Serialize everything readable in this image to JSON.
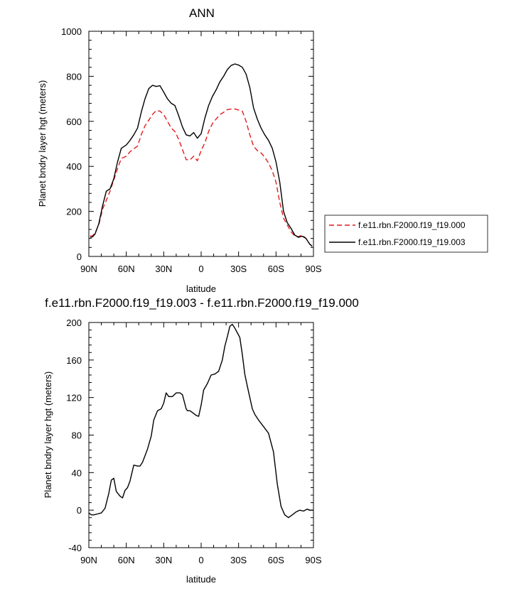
{
  "chart_data": [
    {
      "type": "line",
      "title": "ANN",
      "xlabel": "latitude",
      "ylabel": "Planet bndry layer hgt (meters)",
      "xlim": [
        90,
        -90
      ],
      "ylim": [
        0,
        1000
      ],
      "xticks": [
        90,
        60,
        30,
        0,
        -30,
        -60,
        -90
      ],
      "xtick_labels": [
        "90N",
        "60N",
        "30N",
        "0",
        "30S",
        "60S",
        "90S"
      ],
      "yticks": [
        0,
        200,
        400,
        600,
        800,
        1000
      ],
      "ytick_labels": [
        "0",
        "200",
        "400",
        "600",
        "800",
        "1000"
      ],
      "grid": false,
      "legend_position": "right",
      "series": [
        {
          "name": "f.e11.rbn.F2000.f19_f19.000",
          "color": "#e41a1c",
          "dash": "dashed",
          "x": [
            89,
            87,
            85,
            82,
            79,
            76,
            73,
            70,
            67,
            64,
            60,
            57,
            54,
            51,
            48,
            45,
            42,
            39,
            36,
            33,
            30,
            27,
            24,
            21,
            18,
            15,
            12,
            9,
            6,
            3,
            0,
            -3,
            -6,
            -9,
            -12,
            -15,
            -18,
            -21,
            -24,
            -27,
            -30,
            -33,
            -36,
            -39,
            -42,
            -45,
            -48,
            -51,
            -54,
            -57,
            -60,
            -63,
            -66,
            -69,
            -72,
            -75,
            -78,
            -81,
            -84,
            -87,
            -89
          ],
          "y": [
            90,
            92,
            105,
            140,
            210,
            250,
            290,
            340,
            390,
            435,
            445,
            465,
            478,
            490,
            540,
            580,
            605,
            630,
            648,
            645,
            630,
            600,
            570,
            555,
            520,
            475,
            430,
            428,
            445,
            425,
            470,
            505,
            555,
            590,
            610,
            630,
            640,
            652,
            655,
            655,
            650,
            645,
            600,
            540,
            490,
            470,
            460,
            440,
            415,
            380,
            330,
            240,
            170,
            140,
            110,
            90,
            88,
            95,
            80,
            55,
            45
          ]
        },
        {
          "name": "f.e11.rbn.F2000.f19_f19.003",
          "color": "#000000",
          "dash": "solid",
          "x": [
            89,
            87,
            85,
            82,
            79,
            76,
            73,
            70,
            67,
            64,
            60,
            57,
            54,
            51,
            48,
            45,
            42,
            39,
            36,
            33,
            30,
            27,
            24,
            21,
            18,
            15,
            12,
            9,
            6,
            3,
            0,
            -3,
            -6,
            -9,
            -12,
            -15,
            -18,
            -21,
            -24,
            -27,
            -30,
            -33,
            -36,
            -39,
            -42,
            -45,
            -48,
            -51,
            -54,
            -57,
            -60,
            -63,
            -66,
            -69,
            -72,
            -75,
            -78,
            -81,
            -84,
            -87,
            -89
          ],
          "y": [
            85,
            87,
            100,
            145,
            225,
            290,
            300,
            345,
            420,
            480,
            495,
            515,
            540,
            570,
            640,
            700,
            745,
            760,
            755,
            758,
            730,
            700,
            680,
            670,
            625,
            575,
            540,
            535,
            550,
            525,
            545,
            615,
            670,
            710,
            740,
            775,
            800,
            830,
            848,
            855,
            850,
            840,
            810,
            750,
            660,
            610,
            570,
            540,
            515,
            480,
            420,
            330,
            200,
            150,
            125,
            95,
            85,
            90,
            80,
            55,
            45
          ]
        }
      ]
    },
    {
      "type": "line",
      "title": "f.e11.rbn.F2000.f19_f19.003 - f.e11.rbn.F2000.f19_f19.000",
      "xlabel": "latitude",
      "ylabel": "Planet bndry layer hgt (meters)",
      "xlim": [
        90,
        -90
      ],
      "ylim": [
        -40,
        200
      ],
      "xticks": [
        90,
        60,
        30,
        0,
        -30,
        -60,
        -90
      ],
      "xtick_labels": [
        "90N",
        "60N",
        "30N",
        "0",
        "30S",
        "60S",
        "90S"
      ],
      "yticks": [
        -40,
        0,
        40,
        80,
        120,
        160,
        200
      ],
      "ytick_labels": [
        "-40",
        "0",
        "40",
        "80",
        "120",
        "160",
        "200"
      ],
      "grid": false,
      "series": [
        {
          "color": "#000000",
          "dash": "solid",
          "x": [
            90,
            88,
            86,
            83,
            80,
            77,
            74,
            72,
            70,
            68,
            65,
            63,
            61,
            59,
            57,
            54,
            51,
            49,
            47,
            45,
            43,
            40,
            38,
            35,
            32,
            30,
            28,
            26,
            23,
            20,
            17,
            15,
            12,
            11,
            9,
            6,
            4,
            2,
            0,
            -2,
            -5,
            -8,
            -11,
            -14,
            -17,
            -19,
            -21,
            -23,
            -25,
            -27,
            -29,
            -31,
            -33,
            -35,
            -37,
            -39,
            -41,
            -43,
            -46,
            -50,
            -54,
            -58,
            -61,
            -64,
            -67,
            -70,
            -73,
            -76,
            -79,
            -82,
            -85,
            -87,
            -90
          ],
          "y": [
            -3,
            -5,
            -5,
            -4,
            -3,
            2,
            18,
            32,
            34,
            20,
            15,
            13,
            21,
            24,
            31,
            48,
            47,
            47,
            51,
            58,
            65,
            79,
            96,
            106,
            108,
            114,
            125,
            121,
            121,
            125,
            125,
            123,
            108,
            106,
            106,
            103,
            101,
            100,
            112,
            128,
            135,
            144,
            145,
            148,
            160,
            175,
            185,
            196,
            198,
            194,
            189,
            184,
            166,
            145,
            132,
            120,
            108,
            102,
            96,
            89,
            82,
            62,
            28,
            4,
            -5,
            -8,
            -5,
            -2,
            0,
            -1,
            1,
            0,
            0
          ]
        }
      ]
    }
  ]
}
